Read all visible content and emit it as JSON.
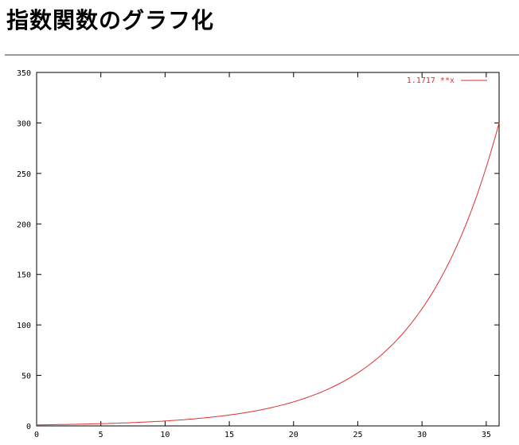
{
  "page": {
    "title": "指数関数のグラフ化"
  },
  "chart_data": {
    "type": "line",
    "title": "",
    "xlabel": "",
    "ylabel": "",
    "xlim": [
      0,
      36
    ],
    "ylim": [
      0,
      350
    ],
    "xticks": [
      0,
      5,
      10,
      15,
      20,
      25,
      30,
      35
    ],
    "yticks": [
      0,
      50,
      100,
      150,
      200,
      250,
      300,
      350
    ],
    "grid": false,
    "legend_position": "top-right",
    "series": [
      {
        "name": "1.1717 **x",
        "function_base": 1.1717,
        "color": "#e03030"
      }
    ]
  }
}
